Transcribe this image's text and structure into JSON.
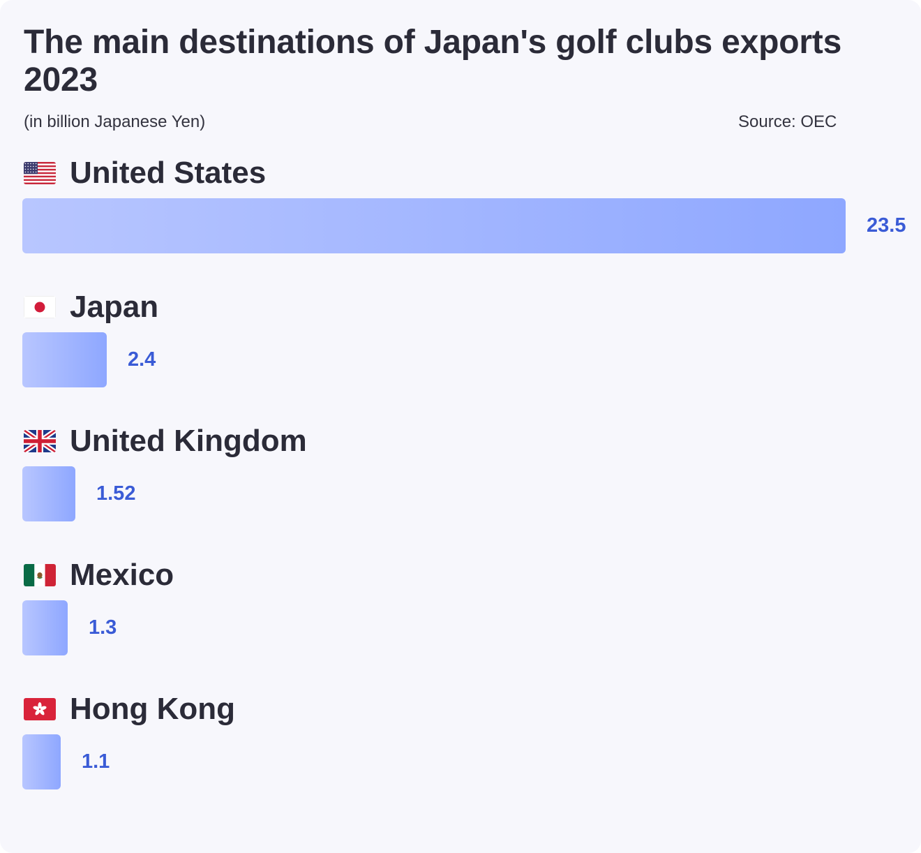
{
  "title": "The main destinations of Japan's golf clubs exports 2023",
  "subtitle": "(in billion Japanese Yen)",
  "source": "Source: OEC",
  "colors": {
    "background": "#f7f7fc",
    "bar_start": "#b8c6ff",
    "bar_end": "#8ea7ff",
    "value_text": "#3a5bd6",
    "title_text": "#2b2b38"
  },
  "chart_data": {
    "type": "bar",
    "orientation": "horizontal",
    "title": "The main destinations of Japan's golf clubs exports 2023",
    "subtitle": "(in billion Japanese Yen)",
    "source": "Source: OEC",
    "categories": [
      "United States",
      "Japan",
      "United Kingdom",
      "Mexico",
      "Hong Kong"
    ],
    "values": [
      23.5,
      2.4,
      1.52,
      1.3,
      1.1
    ],
    "value_labels": [
      "23.5",
      "2.4",
      "1.52",
      "1.3",
      "1.1"
    ],
    "flags": [
      "us-flag-icon",
      "japan-flag-icon",
      "uk-flag-icon",
      "mexico-flag-icon",
      "hong-kong-flag-icon"
    ],
    "xlim": [
      0,
      23.5
    ],
    "grid": false,
    "legend": "none"
  }
}
